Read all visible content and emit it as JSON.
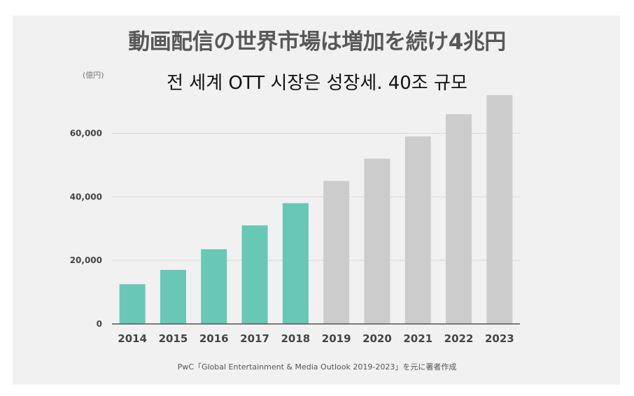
{
  "chart_data": {
    "type": "bar",
    "title": "動画配信の世界市場は増加を続け4兆円",
    "subtitle": "전 세계 OTT 시장은 성장세. 40조 규모",
    "unit_label": "(億円)",
    "categories": [
      "2014",
      "2015",
      "2016",
      "2017",
      "2018",
      "2019",
      "2020",
      "2021",
      "2022",
      "2023"
    ],
    "values": [
      12500,
      17000,
      23500,
      31000,
      38000,
      45000,
      52000,
      59000,
      66000,
      72000
    ],
    "bar_status": [
      "actual",
      "actual",
      "actual",
      "actual",
      "actual",
      "forecast",
      "forecast",
      "forecast",
      "forecast",
      "forecast"
    ],
    "ylim": [
      0,
      72000
    ],
    "yticks": [
      0,
      20000,
      40000,
      60000
    ],
    "ytick_labels": [
      "0",
      "20,000",
      "40,000",
      "60,000"
    ],
    "grid": true,
    "xlabel": "",
    "ylabel": "",
    "source": "PwC「Global Entertainment & Media Outlook 2019-2023」を元に著者作成",
    "colors": {
      "actual": "#68c7b5",
      "forecast": "#cccccc",
      "grid": "#d6d6d6",
      "axis": "#555555"
    }
  }
}
